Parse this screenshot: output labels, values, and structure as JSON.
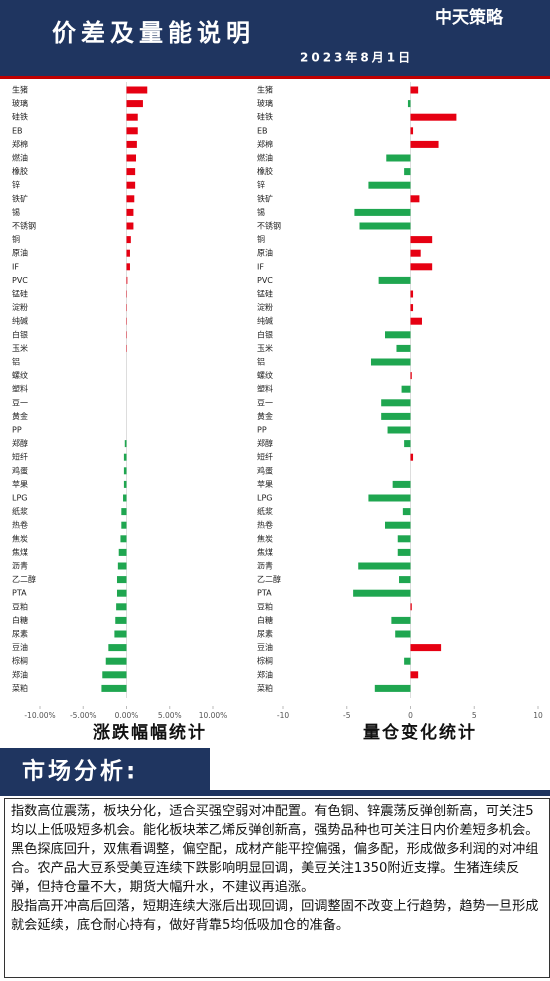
{
  "header": {
    "title": "价差及量能说明",
    "date": "2023年8月1日",
    "logo": "中天策略"
  },
  "chart_data": [
    {
      "type": "bar",
      "orientation": "horizontal",
      "title": "涨跌幅幅统计",
      "categories": [
        "生猪",
        "玻璃",
        "硅铁",
        "EB",
        "郑棉",
        "燃油",
        "橡胶",
        "锌",
        "铁矿",
        "锡",
        "不锈钢",
        "铜",
        "原油",
        "IF",
        "PVC",
        "锰硅",
        "淀粉",
        "纯碱",
        "白银",
        "玉米",
        "铝",
        "螺纹",
        "塑料",
        "豆一",
        "黄金",
        "PP",
        "郑醇",
        "短纤",
        "鸡蛋",
        "苹果",
        "LPG",
        "纸浆",
        "热卷",
        "焦炭",
        "焦煤",
        "沥青",
        "乙二醇",
        "PTA",
        "豆粕",
        "白糖",
        "尿素",
        "豆油",
        "棕榈",
        "郑油",
        "菜粕"
      ],
      "values": [
        2.4,
        1.9,
        1.3,
        1.3,
        1.2,
        1.1,
        1.0,
        1.0,
        0.9,
        0.8,
        0.8,
        0.5,
        0.4,
        0.4,
        0.1,
        0.05,
        0.05,
        0.05,
        0.05,
        0.05,
        0,
        0,
        0,
        0,
        0,
        0,
        -0.2,
        -0.3,
        -0.3,
        -0.3,
        -0.4,
        -0.6,
        -0.6,
        -0.7,
        -0.9,
        -1.0,
        -1.1,
        -1.1,
        -1.2,
        -1.3,
        -1.4,
        -2.1,
        -2.4,
        -2.8,
        -2.9
      ],
      "colors": {
        "positive": "#e60012",
        "negative": "#1fa650"
      },
      "xlim": [
        -10,
        10
      ],
      "xticks": [
        {
          "value": -10,
          "label": "-10.00%"
        },
        {
          "value": -5,
          "label": "-5.00%"
        },
        {
          "value": 0,
          "label": "0.00%"
        },
        {
          "value": 5,
          "label": "5.00%"
        },
        {
          "value": 10,
          "label": "10.00%"
        }
      ]
    },
    {
      "type": "bar",
      "orientation": "horizontal",
      "title": "量仓变化统计",
      "categories": [
        "生猪",
        "玻璃",
        "硅铁",
        "EB",
        "郑棉",
        "燃油",
        "橡胶",
        "锌",
        "铁矿",
        "锡",
        "不锈钢",
        "铜",
        "原油",
        "IF",
        "PVC",
        "锰硅",
        "淀粉",
        "纯碱",
        "白银",
        "玉米",
        "铝",
        "螺纹",
        "塑料",
        "豆一",
        "黄金",
        "PP",
        "郑醇",
        "短纤",
        "鸡蛋",
        "苹果",
        "LPG",
        "纸浆",
        "热卷",
        "焦炭",
        "焦煤",
        "沥青",
        "乙二醇",
        "PTA",
        "豆粕",
        "白糖",
        "尿素",
        "豆油",
        "棕榈",
        "郑油",
        "菜粕"
      ],
      "values": [
        0.6,
        -0.2,
        3.6,
        0.2,
        2.2,
        -1.9,
        -0.5,
        -3.3,
        0.7,
        -4.4,
        -4.0,
        1.7,
        0.8,
        1.7,
        -2.5,
        0.2,
        0.2,
        0.9,
        -2.0,
        -1.1,
        -3.1,
        0.1,
        -0.7,
        -2.3,
        -2.3,
        -1.8,
        -0.5,
        0.2,
        0,
        -1.4,
        -3.3,
        -0.6,
        -2.0,
        -1.0,
        -1.0,
        -4.1,
        -0.9,
        -4.5,
        0.1,
        -1.5,
        -1.2,
        2.4,
        -0.5,
        0.6,
        -2.8
      ],
      "colors": {
        "positive": "#e60012",
        "negative": "#1fa650"
      },
      "xlim": [
        -10,
        10
      ],
      "xticks": [
        -10,
        -5,
        0,
        5,
        10
      ]
    }
  ],
  "analysis": {
    "heading": "市场分析:",
    "paragraphs": [
      "指数高位震荡，板块分化，适合买强空弱对冲配置。有色铜、锌震荡反弹创新高，可关注5均以上低吸短多机会。能化板块苯乙烯反弹创新高，强势品种也可关注日内价差短多机会。黑色探底回升，双焦看调整，偏空配，成材产能平控偏强，偏多配，形成做多利润的对冲组合。农产品大豆系受美豆连续下跌影响明显回调，美豆关注1350附近支撑。生猪连续反弹，但持仓量不大，期货大幅升水，不建议再追涨。",
      "股指高开冲高后回落，短期连续大涨后出现回调，回调整固不改变上行趋势，趋势一旦形成就会延续，底仓耐心持有，做好背靠5均低吸加仓的准备。"
    ]
  }
}
